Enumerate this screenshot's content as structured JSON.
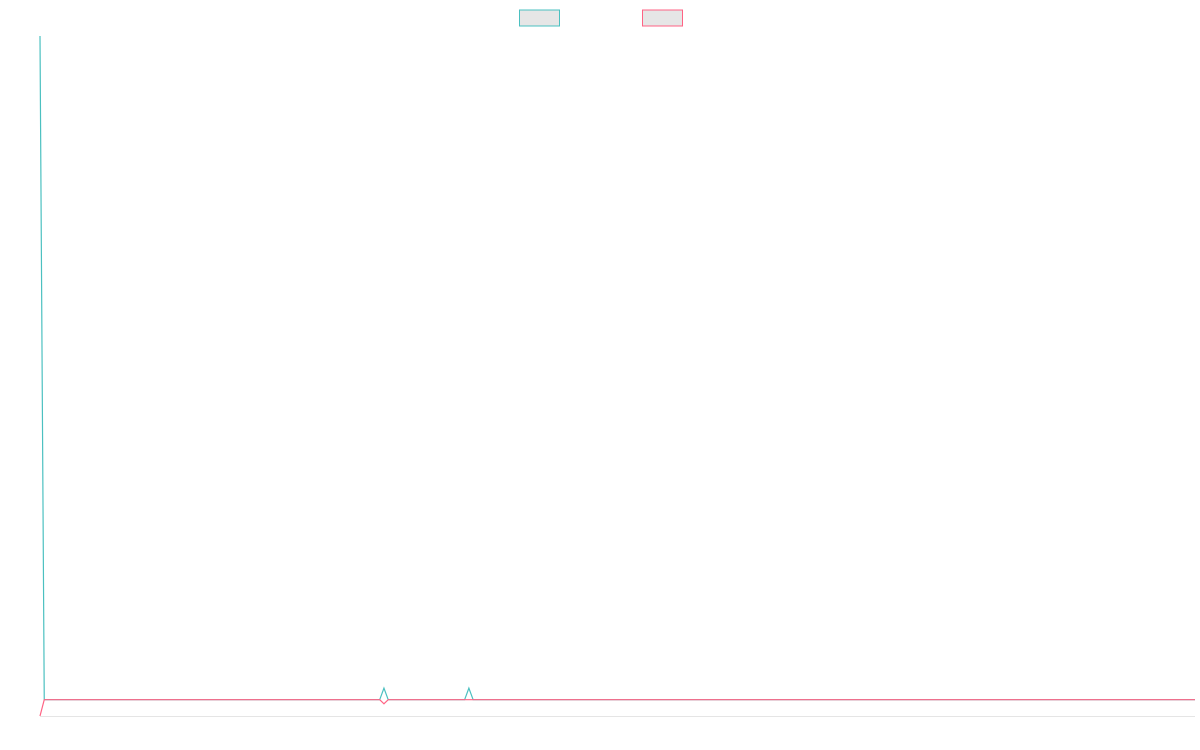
{
  "chart_data": {
    "type": "line",
    "x": [
      0,
      1,
      80,
      81,
      82,
      100,
      101,
      102,
      272
    ],
    "xlim": [
      0,
      272
    ],
    "ylim": [
      0,
      100
    ],
    "series": [
      {
        "color": "#4bc0c0",
        "values": [
          100,
          2.4,
          2.4,
          4.1,
          2.4,
          2.4,
          4.1,
          2.4,
          2.4
        ]
      },
      {
        "color": "#ff6384",
        "values": [
          0,
          2.4,
          2.4,
          1.8,
          2.4,
          2.4,
          2.4,
          2.4,
          2.4
        ]
      }
    ],
    "legend": "top"
  }
}
